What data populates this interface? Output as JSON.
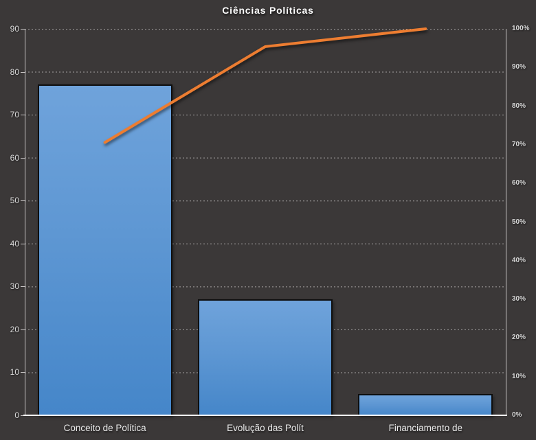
{
  "chart_data": {
    "type": "bar",
    "subtype": "pareto-combo",
    "title": "Ciências Políticas",
    "categories": [
      "Conceito de Política",
      "Evolução das Polít",
      "Financiamento de"
    ],
    "bars": {
      "values": [
        77,
        27,
        5
      ],
      "axis": "left"
    },
    "line": {
      "cumulative_percent": [
        70.6,
        95.4,
        100
      ],
      "axis": "right"
    },
    "left_axis": {
      "min": 0,
      "max": 90,
      "step": 10,
      "labels": [
        "0",
        "10",
        "20",
        "30",
        "40",
        "50",
        "60",
        "70",
        "80",
        "90"
      ]
    },
    "right_axis": {
      "min": 0,
      "max": 100,
      "step": 10,
      "labels": [
        "0%",
        "10%",
        "20%",
        "30%",
        "40%",
        "50%",
        "60%",
        "70%",
        "80%",
        "90%",
        "100%"
      ]
    },
    "grid": "horizontal-dashed",
    "legend": "none",
    "colors": {
      "background": "#3B3838",
      "bar_gradient_top": "#6FA3DB",
      "bar_gradient_bottom": "#4586C9",
      "bar_border": "#0E0E0E",
      "line": "#ED7D31",
      "gridline": "#C9C6C6",
      "axis_text": "#D9D9D9",
      "title_text": "#FFFFFF",
      "bottom_axis": "#FFFFFF"
    }
  }
}
